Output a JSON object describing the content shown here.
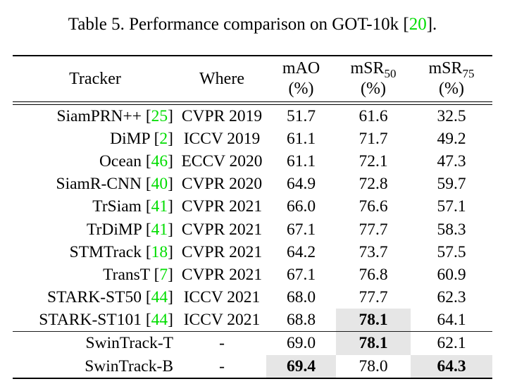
{
  "caption": {
    "prefix": "Table 5. Performance comparison on GOT-10k [",
    "cite": "20",
    "suffix": "]."
  },
  "colors": {
    "citation_green": "#00dd00",
    "highlight_gray": "#e6e6e6",
    "text_black": "#000000"
  },
  "table": {
    "header": {
      "tracker": "Tracker",
      "where": "Where",
      "metrics": [
        {
          "name": "mAO",
          "subscript": "",
          "unit": "(%)"
        },
        {
          "name": "mSR",
          "subscript": "50",
          "unit": "(%)"
        },
        {
          "name": "mSR",
          "subscript": "75",
          "unit": "(%)"
        }
      ]
    },
    "groups": [
      {
        "name": "published-trackers",
        "rows": [
          {
            "tracker": "SiamPRN++",
            "cite": "25",
            "where": "CVPR 2019",
            "mao": "51.7",
            "msr50": "61.6",
            "msr75": "32.5",
            "bold": [],
            "highlight": []
          },
          {
            "tracker": "DiMP",
            "cite": "2",
            "where": "ICCV 2019",
            "mao": "61.1",
            "msr50": "71.7",
            "msr75": "49.2",
            "bold": [],
            "highlight": []
          },
          {
            "tracker": "Ocean",
            "cite": "46",
            "where": "ECCV 2020",
            "mao": "61.1",
            "msr50": "72.1",
            "msr75": "47.3",
            "bold": [],
            "highlight": []
          },
          {
            "tracker": "SiamR-CNN",
            "cite": "40",
            "where": "CVPR 2020",
            "mao": "64.9",
            "msr50": "72.8",
            "msr75": "59.7",
            "bold": [],
            "highlight": []
          },
          {
            "tracker": "TrSiam",
            "cite": "41",
            "where": "CVPR 2021",
            "mao": "66.0",
            "msr50": "76.6",
            "msr75": "57.1",
            "bold": [],
            "highlight": []
          },
          {
            "tracker": "TrDiMP",
            "cite": "41",
            "where": "CVPR 2021",
            "mao": "67.1",
            "msr50": "77.7",
            "msr75": "58.3",
            "bold": [],
            "highlight": []
          },
          {
            "tracker": "STMTrack",
            "cite": "18",
            "where": "CVPR 2021",
            "mao": "64.2",
            "msr50": "73.7",
            "msr75": "57.5",
            "bold": [],
            "highlight": []
          },
          {
            "tracker": "TransT",
            "cite": "7",
            "where": "CVPR 2021",
            "mao": "67.1",
            "msr50": "76.8",
            "msr75": "60.9",
            "bold": [],
            "highlight": []
          },
          {
            "tracker": "STARK-ST50",
            "cite": "44",
            "where": "ICCV 2021",
            "mao": "68.0",
            "msr50": "77.7",
            "msr75": "62.3",
            "bold": [],
            "highlight": []
          },
          {
            "tracker": "STARK-ST101",
            "cite": "44",
            "where": "ICCV 2021",
            "mao": "68.8",
            "msr50": "78.1",
            "msr75": "64.1",
            "bold": [
              "msr50"
            ],
            "highlight": [
              "msr50"
            ]
          }
        ]
      },
      {
        "name": "ours-trackers",
        "rows": [
          {
            "tracker": "SwinTrack-T",
            "cite": null,
            "where": "-",
            "mao": "69.0",
            "msr50": "78.1",
            "msr75": "62.1",
            "bold": [
              "msr50"
            ],
            "highlight": [
              "msr50"
            ]
          },
          {
            "tracker": "SwinTrack-B",
            "cite": null,
            "where": "-",
            "mao": "69.4",
            "msr50": "78.0",
            "msr75": "64.3",
            "bold": [
              "mao",
              "msr75"
            ],
            "highlight": [
              "mao",
              "msr75"
            ]
          }
        ]
      }
    ]
  }
}
